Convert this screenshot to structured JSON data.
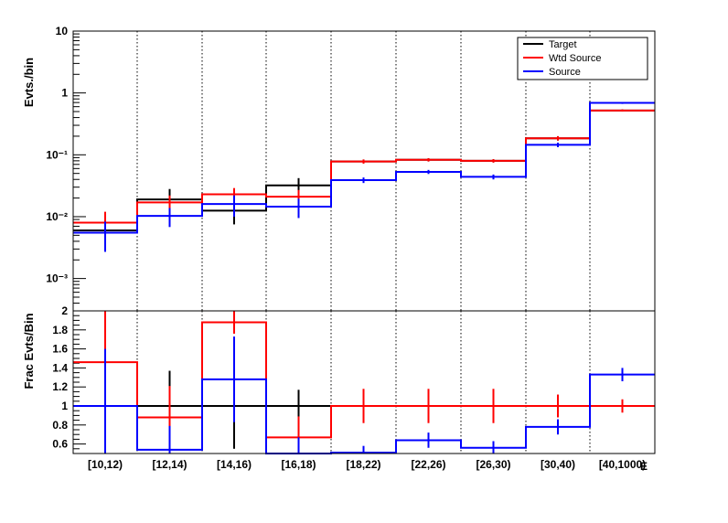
{
  "chart_data": [
    {
      "type": "histogram-step",
      "ylabel": "Evts./bin",
      "yscale": "log",
      "ylim": [
        0.0003,
        10
      ],
      "y_tick_labels": [
        "10",
        "1",
        "10⁻¹",
        "10⁻²",
        "10⁻³"
      ],
      "categories": [
        "[10,12)",
        "[12,14)",
        "[14,16)",
        "[16,18)",
        "[18,22)",
        "[22,26)",
        "[26,30)",
        "[30,40)",
        "[40,1000)"
      ],
      "legend_position": "top-right",
      "series": [
        {
          "name": "Target",
          "color": "#000000",
          "values": [
            0.006,
            0.019,
            0.0125,
            0.032,
            0.078,
            0.083,
            0.08,
            0.185,
            0.52
          ],
          "err_low": [
            0.0025,
            0.007,
            0.005,
            0.012,
            0.006,
            0.005,
            0.005,
            0.015,
            0.02
          ],
          "err_high": [
            0.004,
            0.009,
            0.006,
            0.01,
            0.006,
            0.005,
            0.005,
            0.015,
            0.02
          ]
        },
        {
          "name": "Wtd Source",
          "color": "#ff0000",
          "values": [
            0.008,
            0.017,
            0.023,
            0.021,
            0.078,
            0.083,
            0.08,
            0.185,
            0.52
          ],
          "err_low": [
            0.0025,
            0.005,
            0.006,
            0.006,
            0.006,
            0.005,
            0.005,
            0.015,
            0.02
          ],
          "err_high": [
            0.004,
            0.005,
            0.006,
            0.006,
            0.006,
            0.005,
            0.005,
            0.015,
            0.02
          ]
        },
        {
          "name": "Source",
          "color": "#0000ff",
          "values": [
            0.0055,
            0.0103,
            0.016,
            0.0145,
            0.039,
            0.053,
            0.044,
            0.145,
            0.69
          ],
          "err_low": [
            0.0028,
            0.0035,
            0.006,
            0.005,
            0.004,
            0.004,
            0.004,
            0.012,
            0.025
          ],
          "err_high": [
            0.0028,
            0.0035,
            0.006,
            0.005,
            0.004,
            0.004,
            0.004,
            0.012,
            0.025
          ]
        }
      ]
    },
    {
      "type": "histogram-step",
      "ylabel": "Frac Evts/Bin",
      "xlabel": "E",
      "ylim": [
        0.5,
        2.0
      ],
      "y_tick_labels": [
        "2",
        "1.8",
        "1.6",
        "1.4",
        "1.2",
        "1",
        "0.8",
        "0.6"
      ],
      "categories": [
        "[10,12)",
        "[12,14)",
        "[14,16)",
        "[16,18)",
        "[18,22)",
        "[22,26)",
        "[26,30)",
        "[30,40)",
        "[40,1000)"
      ],
      "series": [
        {
          "name": "Target",
          "color": "#000000",
          "values": [
            1,
            1,
            1,
            1,
            1,
            1,
            1,
            1,
            1
          ],
          "err": [
            0,
            0.37,
            0.45,
            0.17,
            0,
            0,
            0,
            0,
            0
          ]
        },
        {
          "name": "Wtd Source",
          "color": "#ff0000",
          "values": [
            1.46,
            0.88,
            1.88,
            0.67,
            1.0,
            1.0,
            1.0,
            1.0,
            1.0
          ],
          "err": [
            0.55,
            0.33,
            0.12,
            0.22,
            0.18,
            0.18,
            0.18,
            0.12,
            0.07
          ]
        },
        {
          "name": "Source",
          "color": "#0000ff",
          "values": [
            1.0,
            0.54,
            1.28,
            0.47,
            0.51,
            0.64,
            0.56,
            0.78,
            1.33
          ],
          "err": [
            0.6,
            0.25,
            0.45,
            0.2,
            0.07,
            0.08,
            0.07,
            0.08,
            0.07
          ]
        }
      ]
    }
  ]
}
